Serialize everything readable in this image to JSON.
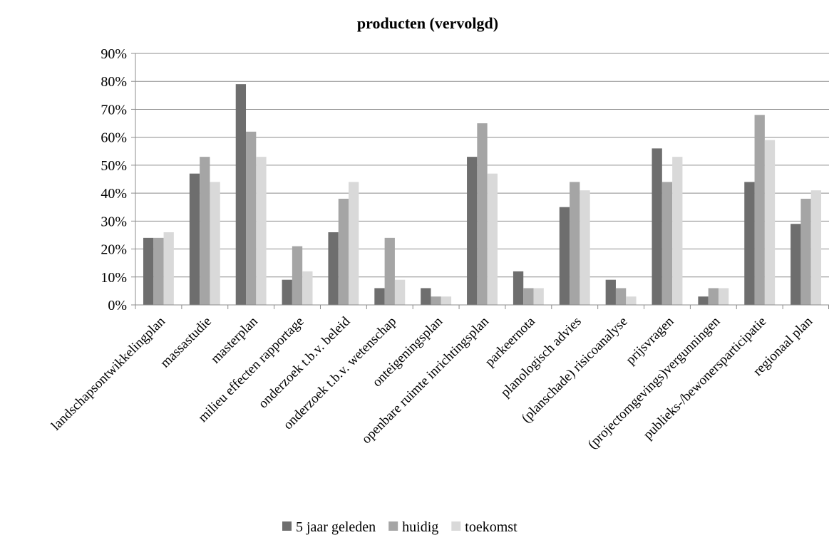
{
  "chart_data": {
    "type": "bar",
    "title": "producten (vervolgd)",
    "categories": [
      "landschapsontwikkelingplan",
      "massastudie",
      "masterplan",
      "milieu effecten rapportage",
      "onderzoek t.b.v. beleid",
      "onderzoek t.b.v. wetenschap",
      "onteigeningsplan",
      "openbare ruimte inrichtingsplan",
      "parkeernota",
      "planologisch advies",
      "(planschade) risicoanalyse",
      "prijsvragen",
      "(projectomgevings)vergunningen",
      "publieks-/bewonersparticipatie",
      "regionaal plan"
    ],
    "series": [
      {
        "name": "5 jaar geleden",
        "color": "#6e6e6e",
        "values": [
          24,
          47,
          79,
          9,
          26,
          6,
          6,
          53,
          12,
          35,
          9,
          56,
          3,
          44,
          29
        ]
      },
      {
        "name": "huidig",
        "color": "#a5a5a5",
        "values": [
          24,
          53,
          62,
          21,
          38,
          24,
          3,
          65,
          6,
          44,
          6,
          44,
          6,
          68,
          38
        ]
      },
      {
        "name": "toekomst",
        "color": "#d9d9d9",
        "values": [
          26,
          44,
          53,
          12,
          44,
          9,
          3,
          47,
          6,
          41,
          3,
          53,
          6,
          59,
          41
        ]
      }
    ],
    "ylim": [
      0,
      90
    ],
    "yticks": [
      "0%",
      "10%",
      "20%",
      "30%",
      "40%",
      "50%",
      "60%",
      "70%",
      "80%",
      "90%"
    ],
    "xlabel": "",
    "ylabel": "",
    "grid": true,
    "legend_position": "bottom"
  }
}
